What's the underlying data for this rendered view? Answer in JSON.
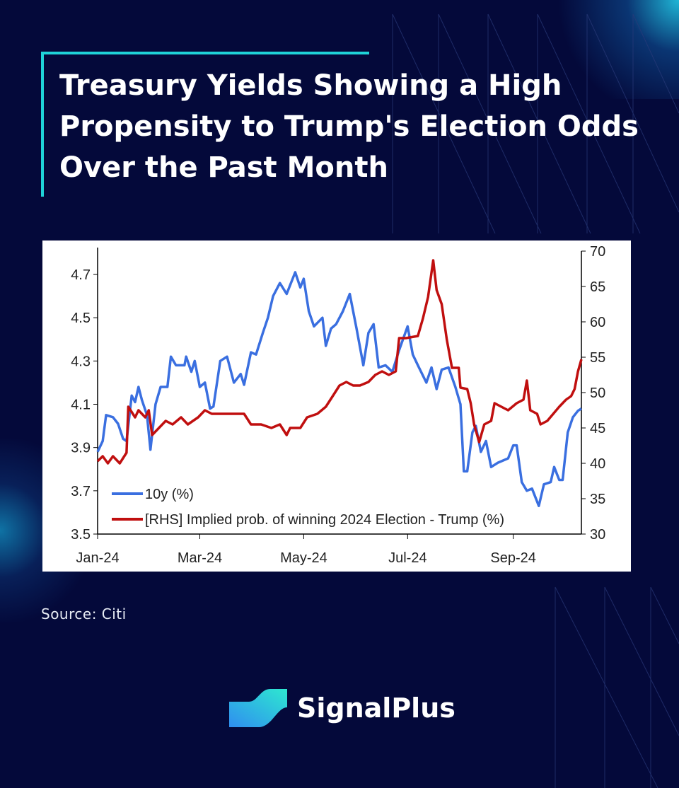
{
  "title_lines": [
    "Treasury Yields Showing a High",
    "Propensity to Trump's Election Odds",
    "Over the Past Month"
  ],
  "source": "Source: Citi",
  "brand": "SignalPlus",
  "colors": {
    "background": "#04093a",
    "accent": "#1fd3d8",
    "series_10y": "#3a6fe0",
    "series_trump": "#c00f0f"
  },
  "chart_data": {
    "type": "line",
    "x_unit": "day of 2024 (0 = Jan 1)",
    "xlim": [
      0,
      284
    ],
    "x_ticks": [
      {
        "label": "Jan-24",
        "day": 0
      },
      {
        "label": "Mar-24",
        "day": 60
      },
      {
        "label": "May-24",
        "day": 121
      },
      {
        "label": "Jul-24",
        "day": 182
      },
      {
        "label": "Sep-24",
        "day": 244
      }
    ],
    "y_left": {
      "ylim": [
        3.5,
        4.8
      ],
      "ticks": [
        "3.5",
        "3.7",
        "3.9",
        "4.1",
        "4.3",
        "4.5",
        "4.7"
      ]
    },
    "y_right": {
      "ylim": [
        30,
        70
      ],
      "ticks": [
        "30",
        "35",
        "40",
        "45",
        "50",
        "55",
        "60",
        "65",
        "70"
      ]
    },
    "legend_position": "bottom-left",
    "series": [
      {
        "name": "10y (%)",
        "axis": "left",
        "points": [
          [
            0,
            3.88
          ],
          [
            3,
            3.93
          ],
          [
            5,
            4.05
          ],
          [
            9,
            4.04
          ],
          [
            12,
            4.01
          ],
          [
            15,
            3.94
          ],
          [
            17,
            3.93
          ],
          [
            20,
            4.14
          ],
          [
            22,
            4.11
          ],
          [
            24,
            4.18
          ],
          [
            26,
            4.12
          ],
          [
            29,
            4.05
          ],
          [
            31,
            3.89
          ],
          [
            34,
            4.1
          ],
          [
            37,
            4.18
          ],
          [
            41,
            4.18
          ],
          [
            43,
            4.32
          ],
          [
            46,
            4.28
          ],
          [
            51,
            4.28
          ],
          [
            52,
            4.32
          ],
          [
            55,
            4.25
          ],
          [
            57,
            4.3
          ],
          [
            60,
            4.18
          ],
          [
            63,
            4.2
          ],
          [
            66,
            4.08
          ],
          [
            68,
            4.09
          ],
          [
            72,
            4.3
          ],
          [
            76,
            4.32
          ],
          [
            80,
            4.2
          ],
          [
            84,
            4.24
          ],
          [
            86,
            4.19
          ],
          [
            90,
            4.34
          ],
          [
            93,
            4.33
          ],
          [
            97,
            4.43
          ],
          [
            100,
            4.5
          ],
          [
            103,
            4.6
          ],
          [
            107,
            4.66
          ],
          [
            111,
            4.61
          ],
          [
            116,
            4.71
          ],
          [
            119,
            4.64
          ],
          [
            121,
            4.68
          ],
          [
            124,
            4.53
          ],
          [
            127,
            4.46
          ],
          [
            132,
            4.5
          ],
          [
            134,
            4.37
          ],
          [
            137,
            4.45
          ],
          [
            140,
            4.47
          ],
          [
            144,
            4.53
          ],
          [
            148,
            4.61
          ],
          [
            152,
            4.45
          ],
          [
            156,
            4.28
          ],
          [
            159,
            4.43
          ],
          [
            162,
            4.47
          ],
          [
            165,
            4.27
          ],
          [
            169,
            4.28
          ],
          [
            173,
            4.25
          ],
          [
            177,
            4.35
          ],
          [
            182,
            4.46
          ],
          [
            185,
            4.33
          ],
          [
            188,
            4.28
          ],
          [
            193,
            4.2
          ],
          [
            196,
            4.27
          ],
          [
            199,
            4.17
          ],
          [
            202,
            4.26
          ],
          [
            206,
            4.27
          ],
          [
            210,
            4.18
          ],
          [
            213,
            4.1
          ],
          [
            215,
            3.79
          ],
          [
            217,
            3.79
          ],
          [
            220,
            3.97
          ],
          [
            222,
            4.0
          ],
          [
            225,
            3.88
          ],
          [
            228,
            3.93
          ],
          [
            231,
            3.81
          ],
          [
            235,
            3.83
          ],
          [
            241,
            3.85
          ],
          [
            244,
            3.91
          ],
          [
            246,
            3.91
          ],
          [
            249,
            3.74
          ],
          [
            252,
            3.7
          ],
          [
            255,
            3.71
          ],
          [
            259,
            3.63
          ],
          [
            262,
            3.73
          ],
          [
            266,
            3.74
          ],
          [
            268,
            3.81
          ],
          [
            271,
            3.75
          ],
          [
            273,
            3.75
          ],
          [
            276,
            3.97
          ],
          [
            279,
            4.04
          ],
          [
            282,
            4.07
          ],
          [
            284,
            4.08
          ]
        ]
      },
      {
        "name": "[RHS] Implied prob. of winning 2024 Election - Trump (%)",
        "axis": "right",
        "points": [
          [
            0,
            40.3
          ],
          [
            3,
            41
          ],
          [
            6,
            40
          ],
          [
            9,
            41
          ],
          [
            13,
            40
          ],
          [
            17,
            41.5
          ],
          [
            18,
            48
          ],
          [
            22,
            46.5
          ],
          [
            24,
            47.5
          ],
          [
            28,
            46.5
          ],
          [
            30,
            47.5
          ],
          [
            32,
            44
          ],
          [
            36,
            45
          ],
          [
            40,
            46
          ],
          [
            44,
            45.5
          ],
          [
            49,
            46.5
          ],
          [
            53,
            45.5
          ],
          [
            59,
            46.5
          ],
          [
            63,
            47.5
          ],
          [
            67,
            47
          ],
          [
            76,
            47
          ],
          [
            86,
            47
          ],
          [
            90,
            45.5
          ],
          [
            96,
            45.5
          ],
          [
            102,
            45
          ],
          [
            107,
            45.5
          ],
          [
            111,
            44
          ],
          [
            113,
            45
          ],
          [
            119,
            45
          ],
          [
            123,
            46.5
          ],
          [
            129,
            47
          ],
          [
            134,
            48
          ],
          [
            138,
            49.5
          ],
          [
            142,
            51
          ],
          [
            146,
            51.5
          ],
          [
            150,
            51
          ],
          [
            154,
            51
          ],
          [
            159,
            51.5
          ],
          [
            163,
            52.5
          ],
          [
            167,
            53
          ],
          [
            171,
            52.5
          ],
          [
            175,
            53
          ],
          [
            177,
            57.7
          ],
          [
            181,
            57.7
          ],
          [
            188,
            58
          ],
          [
            191,
            60.5
          ],
          [
            194,
            63.5
          ],
          [
            197,
            68.7
          ],
          [
            199,
            64.5
          ],
          [
            202,
            62.5
          ],
          [
            205,
            57.5
          ],
          [
            208,
            53.5
          ],
          [
            212,
            53.5
          ],
          [
            213,
            50.7
          ],
          [
            217,
            50.5
          ],
          [
            219,
            48.5
          ],
          [
            221,
            45.5
          ],
          [
            224,
            43
          ],
          [
            227,
            45.5
          ],
          [
            231,
            46
          ],
          [
            233,
            48.5
          ],
          [
            237,
            48
          ],
          [
            241,
            47.5
          ],
          [
            246,
            48.5
          ],
          [
            250,
            49
          ],
          [
            252,
            51.7
          ],
          [
            254,
            47.5
          ],
          [
            258,
            47
          ],
          [
            260,
            45.5
          ],
          [
            264,
            46
          ],
          [
            271,
            48
          ],
          [
            275,
            49
          ],
          [
            278,
            49.5
          ],
          [
            280,
            50.5
          ],
          [
            282,
            53
          ],
          [
            284,
            54.7
          ]
        ]
      }
    ]
  }
}
